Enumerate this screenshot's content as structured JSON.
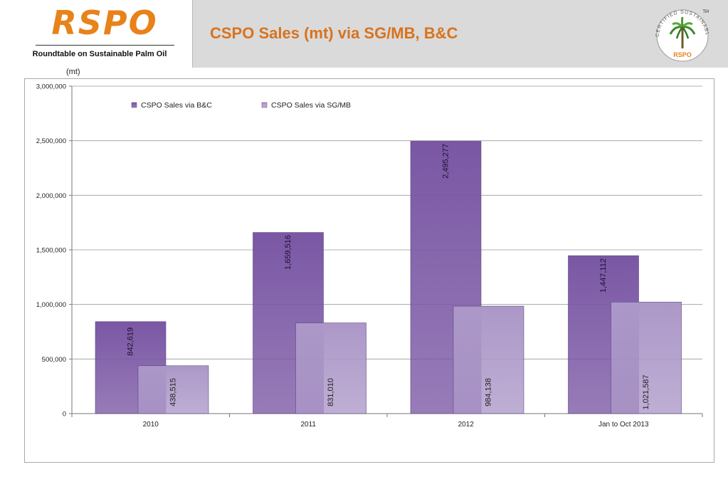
{
  "header": {
    "logo_text": "RSPO",
    "logo_subtitle": "Roundtable on Sustainable Palm Oil",
    "title": "CSPO Sales (mt) via SG/MB, B&C",
    "badge_arc_text": "CERTIFIED SUSTAINABLE PALM OIL",
    "badge_text": "RSPO",
    "badge_tm": "TM"
  },
  "chart_unit": "(mt)",
  "colors": {
    "accent": "#d8731d",
    "series_bc": "#7a57a4",
    "series_sgmb": "#ac98c8"
  },
  "chart_data": {
    "type": "bar",
    "categories": [
      "2010",
      "2011",
      "2012",
      "Jan to Oct 2013"
    ],
    "series": [
      {
        "name": "CSPO Sales via B&C",
        "values": [
          842619,
          1659516,
          2495277,
          1447112
        ],
        "labels": [
          "842,619",
          "1,659,516",
          "2,495,277",
          "1,447,112"
        ]
      },
      {
        "name": "CSPO Sales via SG/MB",
        "values": [
          438515,
          831010,
          984138,
          1021587
        ],
        "labels": [
          "438,515",
          "831,010",
          "984,138",
          "1,021,587"
        ]
      }
    ],
    "ylim": [
      0,
      3000000
    ],
    "yticks": [
      0,
      500000,
      1000000,
      1500000,
      2000000,
      2500000,
      3000000
    ],
    "ytick_labels": [
      "0",
      "500,000",
      "1,000,000",
      "1,500,000",
      "2,000,000",
      "2,500,000",
      "3,000,000"
    ],
    "grid": true,
    "legend_position": "top-left"
  }
}
